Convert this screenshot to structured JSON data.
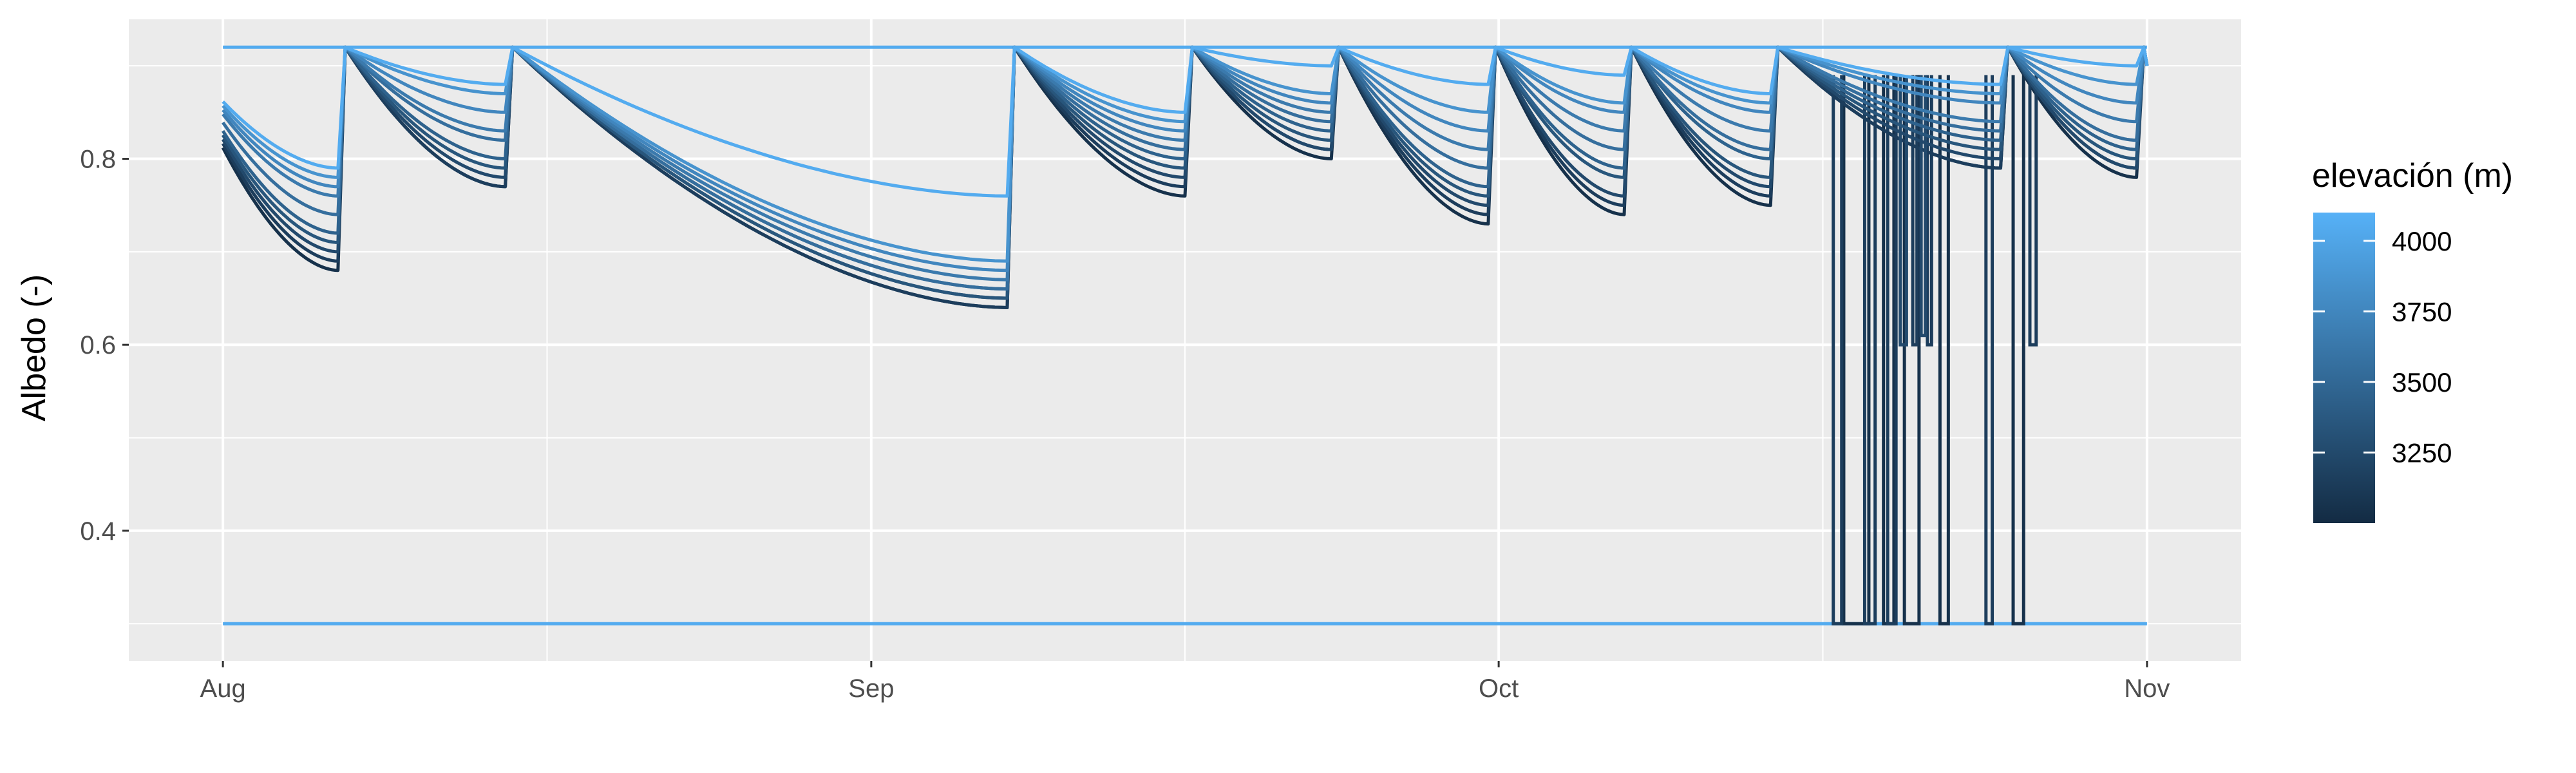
{
  "chart_data": {
    "type": "line",
    "title": "",
    "xlabel": "",
    "ylabel": "Albedo (-)",
    "x_ticks": [
      {
        "label": "Aug",
        "day": 0
      },
      {
        "label": "Sep",
        "day": 31
      },
      {
        "label": "Oct",
        "day": 61
      },
      {
        "label": "Nov",
        "day": 92
      }
    ],
    "xlim_days": [
      -4.5,
      96.5
    ],
    "ylim": [
      0.26,
      0.95
    ],
    "y_ticks": [
      0.4,
      0.6,
      0.8
    ],
    "grid": true,
    "legend": {
      "title": "elevación (m)",
      "placement": "right",
      "range": [
        3000,
        4100
      ],
      "breaks": [
        3250,
        3500,
        3750,
        4000
      ],
      "color_low": "#132B43",
      "color_high": "#56B1F7"
    },
    "envelope": {
      "max": 0.92,
      "min": 0.3
    },
    "series": [
      {
        "elevation": 3050,
        "refresh_days": [
          5.5,
          13.5,
          37.5,
          46,
          53,
          60.5,
          67,
          74,
          85,
          91.5
        ],
        "minimums": [
          0.68,
          0.77,
          0.64,
          0.76,
          0.8,
          0.73,
          0.74,
          0.75,
          0.79,
          0.78
        ],
        "drops": [
          [
            77.5,
            78.7,
            0.3
          ],
          [
            79.4,
            79.9,
            0.3
          ],
          [
            80.4,
            81.1,
            0.3
          ],
          [
            82.1,
            82.5,
            0.3
          ],
          [
            85.6,
            86.1,
            0.3
          ]
        ]
      },
      {
        "elevation": 3150,
        "refresh_days": [
          5.5,
          13.5,
          37.5,
          46,
          53,
          60.5,
          67,
          74,
          85,
          91.5
        ],
        "minimums": [
          0.69,
          0.77,
          0.64,
          0.77,
          0.81,
          0.74,
          0.75,
          0.76,
          0.79,
          0.79
        ],
        "drops": [
          [
            77.0,
            77.4,
            0.3
          ],
          [
            78.5,
            79.0,
            0.3
          ],
          [
            79.6,
            80.0,
            0.3
          ],
          [
            80.8,
            81.0,
            0.6
          ],
          [
            81.5,
            81.7,
            0.6
          ],
          [
            84.3,
            84.6,
            0.3
          ],
          [
            86.4,
            86.7,
            0.6
          ]
        ]
      },
      {
        "elevation": 3250,
        "refresh_days": [
          5.5,
          13.5,
          37.5,
          46,
          53,
          60.5,
          67,
          74,
          85,
          91.5
        ],
        "minimums": [
          0.7,
          0.78,
          0.65,
          0.78,
          0.81,
          0.75,
          0.76,
          0.77,
          0.8,
          0.79
        ],
        "drops": [
          [
            80.2,
            80.5,
            0.6
          ],
          [
            81.2,
            81.4,
            0.61
          ]
        ]
      },
      {
        "elevation": 3350,
        "refresh_days": [
          5.5,
          13.5,
          37.5,
          46,
          53,
          60.5,
          67,
          74,
          85,
          91.5
        ],
        "minimums": [
          0.71,
          0.79,
          0.65,
          0.79,
          0.82,
          0.76,
          0.78,
          0.78,
          0.81,
          0.8
        ],
        "drops": []
      },
      {
        "elevation": 3450,
        "refresh_days": [
          5.5,
          13.5,
          37.5,
          46,
          53,
          60.5,
          67,
          74,
          85,
          91.5
        ],
        "minimums": [
          0.72,
          0.8,
          0.66,
          0.8,
          0.83,
          0.77,
          0.79,
          0.8,
          0.82,
          0.81
        ],
        "drops": []
      },
      {
        "elevation": 3550,
        "refresh_days": [
          5.5,
          13.5,
          37.5,
          46,
          53,
          60.5,
          67,
          74,
          85,
          91.5
        ],
        "minimums": [
          0.74,
          0.82,
          0.66,
          0.81,
          0.84,
          0.79,
          0.81,
          0.81,
          0.83,
          0.82
        ],
        "drops": []
      },
      {
        "elevation": 3650,
        "refresh_days": [
          5.5,
          13.5,
          37.5,
          46,
          53,
          60.5,
          67,
          74,
          85,
          91.5
        ],
        "minimums": [
          0.76,
          0.83,
          0.67,
          0.82,
          0.85,
          0.81,
          0.83,
          0.83,
          0.84,
          0.84
        ],
        "drops": []
      },
      {
        "elevation": 3750,
        "refresh_days": [
          5.5,
          13.5,
          37.5,
          46,
          53,
          60.5,
          67,
          74,
          85,
          91.5
        ],
        "minimums": [
          0.77,
          0.85,
          0.68,
          0.83,
          0.86,
          0.83,
          0.85,
          0.85,
          0.86,
          0.86
        ],
        "drops": []
      },
      {
        "elevation": 3850,
        "refresh_days": [
          5.5,
          13.5,
          37.5,
          46,
          53,
          60.5,
          67,
          74,
          85,
          91.5
        ],
        "minimums": [
          0.78,
          0.87,
          0.69,
          0.84,
          0.87,
          0.85,
          0.86,
          0.86,
          0.87,
          0.88
        ],
        "drops": []
      },
      {
        "elevation": 4050,
        "refresh_days": [
          5.5,
          13.5,
          37.5,
          46,
          53,
          60.5,
          67,
          74,
          85,
          91.5
        ],
        "minimums": [
          0.79,
          0.88,
          0.76,
          0.85,
          0.9,
          0.88,
          0.89,
          0.87,
          0.88,
          0.9
        ],
        "drops": []
      }
    ]
  }
}
